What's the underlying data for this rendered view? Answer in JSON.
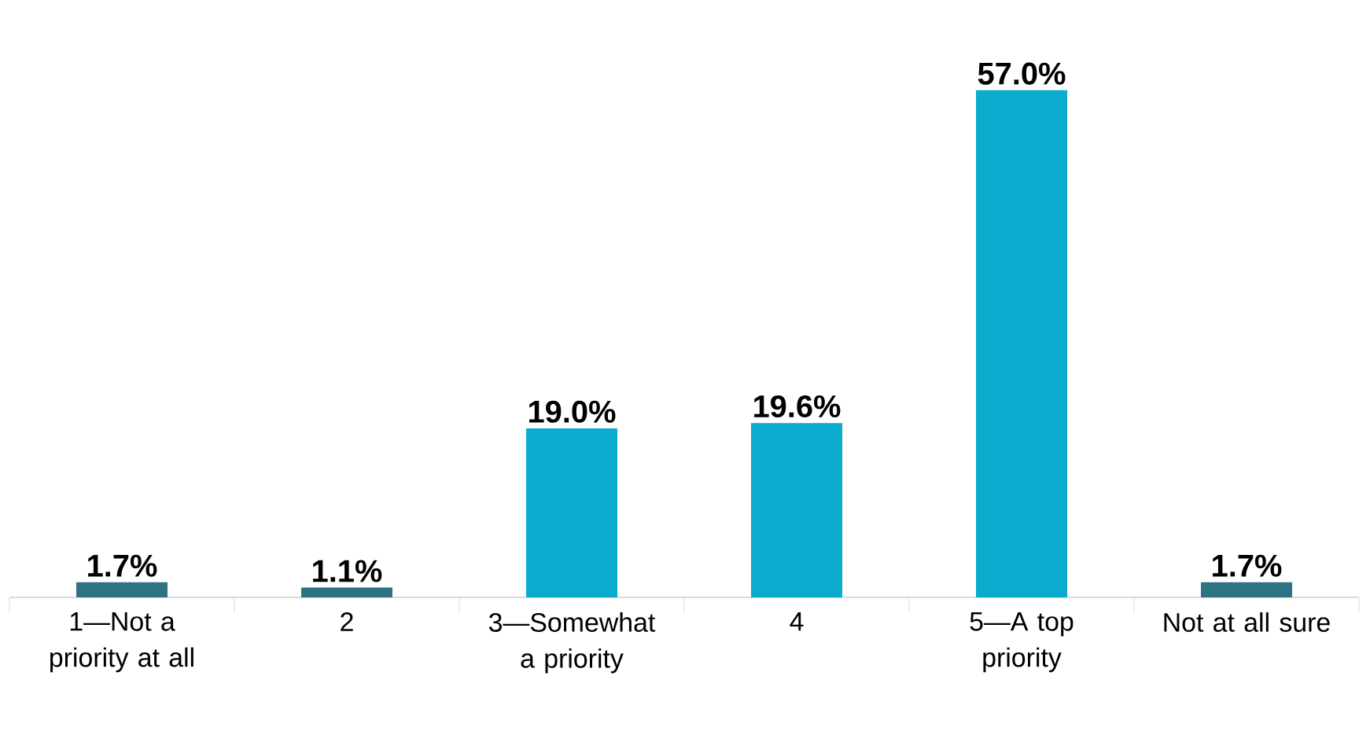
{
  "chart_data": {
    "type": "bar",
    "categories": [
      "1—Not a priority at all",
      "2",
      "3—Somewhat a priority",
      "4",
      "5—A top priority",
      "Not at all sure"
    ],
    "values": [
      1.7,
      1.1,
      19.0,
      19.6,
      57.0,
      1.7
    ],
    "colors": [
      "#2e7384",
      "#2e7384",
      "#0aabcc",
      "#0aabcc",
      "#0aabcc",
      "#2e7384"
    ],
    "value_labels": [
      "1.7%",
      "1.1%",
      "19.0%",
      "19.6%",
      "57.0%",
      "1.7%"
    ]
  }
}
